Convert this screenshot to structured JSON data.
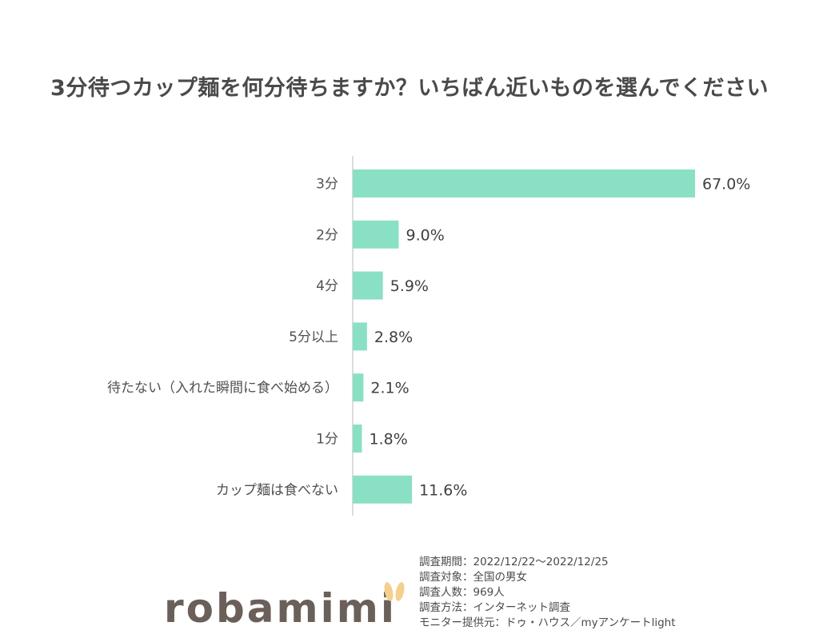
{
  "title": "3分待つカップ麺を何分待ちますか？いちばん近いものを選んでください",
  "chart_data": {
    "type": "bar",
    "orientation": "horizontal",
    "categories": [
      "3分",
      "2分",
      "4分",
      "5分以上",
      "待たない（入れた瞬間に食べ始める）",
      "1分",
      "カップ麺は食べない"
    ],
    "values": [
      67.0,
      9.0,
      5.9,
      2.8,
      2.1,
      1.8,
      11.6
    ],
    "value_labels": [
      "67.0%",
      "9.0%",
      "5.9%",
      "2.8%",
      "2.1%",
      "1.8%",
      "11.6%"
    ],
    "unit": "%",
    "xlim": [
      0,
      67
    ],
    "bar_color": "#8ae0c4",
    "axis_color": "#d0d0d0",
    "grid": false,
    "legend": "none"
  },
  "notes": [
    "調査期間：2022/12/22〜2022/12/25",
    "調査対象：全国の男女",
    "調査人数：969人",
    "調査方法：インターネット調査",
    "モニター提供元：ドゥ・ハウス／myアンケートlight"
  ],
  "logo": {
    "text": "robamimi",
    "text_color": "#6b5f59",
    "ear_color": "#f5cf8e"
  }
}
